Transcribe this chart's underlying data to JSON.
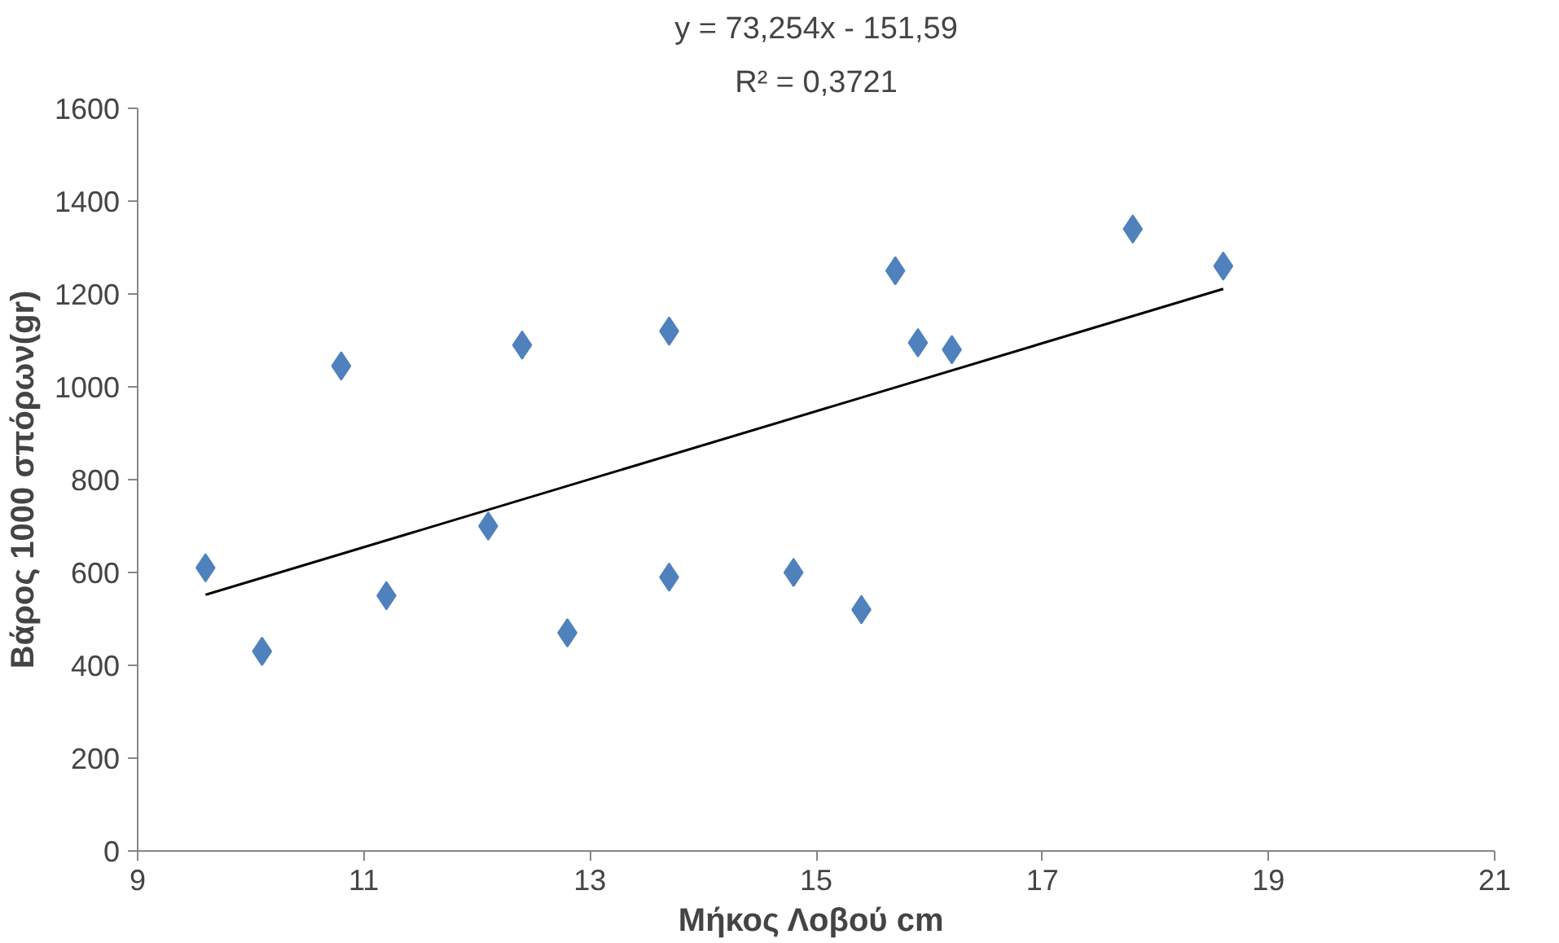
{
  "chart_data": {
    "type": "scatter",
    "xlabel": "Μήκος Λοβού  cm",
    "ylabel": "Βάρος 1000 σπόρων(gr)",
    "annotations": [
      "y = 73,254x - 151,59",
      "R² = 0,3721"
    ],
    "x": [
      9.6,
      10.1,
      10.8,
      11.2,
      12.1,
      12.4,
      12.8,
      13.7,
      13.7,
      14.8,
      15.4,
      15.7,
      15.9,
      16.2,
      17.8,
      18.6
    ],
    "series": [
      {
        "color": "#4f81bd",
        "marker": "diamond",
        "values": [
          610,
          430,
          1045,
          550,
          700,
          1090,
          470,
          1120,
          590,
          600,
          520,
          1250,
          1095,
          1080,
          1340,
          1260
        ]
      },
      {
        "type": "line",
        "color": "#000000",
        "x": [
          9.6,
          18.6
        ],
        "values": [
          552,
          1211
        ]
      }
    ],
    "xlim": [
      9,
      21
    ],
    "xticks": [
      9,
      11,
      13,
      15,
      17,
      19,
      21
    ],
    "ylim": [
      0,
      1600
    ],
    "yticks": [
      0,
      200,
      400,
      600,
      800,
      1000,
      1200,
      1400,
      1600
    ],
    "grid": false
  }
}
